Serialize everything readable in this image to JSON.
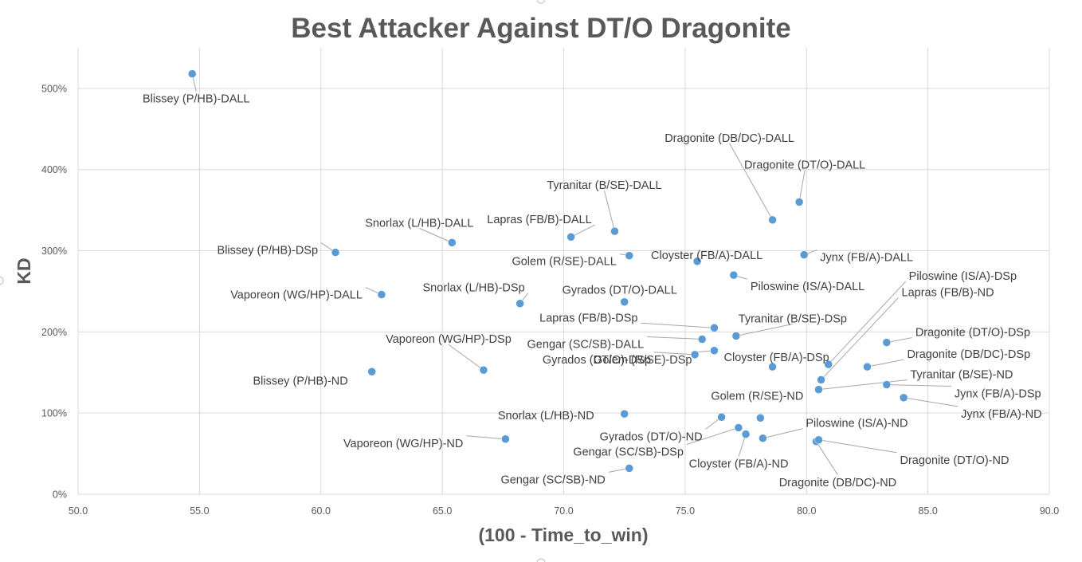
{
  "chart_data": {
    "type": "scatter",
    "title": "Best Attacker Against DT/O Dragonite",
    "xlabel": "(100 - Time_to_win)",
    "ylabel": "KD",
    "xlim": [
      50,
      90
    ],
    "ylim": [
      0,
      5.5
    ],
    "x_ticks": [
      "50.0",
      "55.0",
      "60.0",
      "65.0",
      "70.0",
      "75.0",
      "80.0",
      "85.0",
      "90.0"
    ],
    "y_ticks": [
      "0%",
      "100%",
      "200%",
      "300%",
      "400%",
      "500%"
    ],
    "grid": true,
    "legend": "none",
    "point_color": "#5b9bd5",
    "points": [
      {
        "label": "Blissey (P/HB)-DALL",
        "x": 54.7,
        "y": 5.18
      },
      {
        "label": "Blissey (P/HB)-DSp",
        "x": 60.6,
        "y": 2.98
      },
      {
        "label": "Blissey (P/HB)-ND",
        "x": 62.1,
        "y": 1.51
      },
      {
        "label": "Vaporeon (WG/HP)-DALL",
        "x": 62.5,
        "y": 2.46
      },
      {
        "label": "Vaporeon (WG/HP)-DSp",
        "x": 66.7,
        "y": 1.53
      },
      {
        "label": "Vaporeon (WG/HP)-ND",
        "x": 67.6,
        "y": 0.68
      },
      {
        "label": "Snorlax (L/HB)-DALL",
        "x": 65.4,
        "y": 3.1
      },
      {
        "label": "Snorlax (L/HB)-DSp",
        "x": 68.2,
        "y": 2.35
      },
      {
        "label": "Snorlax (L/HB)-ND",
        "x": 72.5,
        "y": 0.99
      },
      {
        "label": "Lapras (FB/B)-DALL",
        "x": 70.3,
        "y": 3.17
      },
      {
        "label": "Lapras (FB/B)-DSp",
        "x": 76.2,
        "y": 2.05
      },
      {
        "label": "Lapras (FB/B)-ND",
        "x": 80.6,
        "y": 1.41
      },
      {
        "label": "Tyranitar (B/SE)-DALL",
        "x": 72.1,
        "y": 3.24
      },
      {
        "label": "Tyranitar (B/SE)-DSp",
        "x": 77.1,
        "y": 1.95
      },
      {
        "label": "Tyranitar (B/SE)-ND",
        "x": 80.5,
        "y": 1.29
      },
      {
        "label": "Golem (R/SE)-DALL",
        "x": 72.7,
        "y": 2.94
      },
      {
        "label": "Golem (R/SE)-DSp",
        "x": 76.2,
        "y": 1.77
      },
      {
        "label": "Golem (R/SE)-ND",
        "x": 78.1,
        "y": 0.94
      },
      {
        "label": "Gyrados (DT/O)-DALL",
        "x": 72.5,
        "y": 2.37
      },
      {
        "label": "Gyrados (DT/O)-DSp",
        "x": 75.4,
        "y": 1.72
      },
      {
        "label": "Gyrados (DT/O)-ND",
        "x": 76.5,
        "y": 0.95
      },
      {
        "label": "Gengar (SC/SB)-DALL",
        "x": 75.7,
        "y": 1.91
      },
      {
        "label": "Gengar (SC/SB)-DSp",
        "x": 77.2,
        "y": 0.82
      },
      {
        "label": "Gengar (SC/SB)-ND",
        "x": 72.7,
        "y": 0.32
      },
      {
        "label": "Cloyster (FB/A)-DALL",
        "x": 75.5,
        "y": 2.87
      },
      {
        "label": "Cloyster (FB/A)-DSp",
        "x": 78.6,
        "y": 1.57
      },
      {
        "label": "Cloyster (FB/A)-ND",
        "x": 77.5,
        "y": 0.74
      },
      {
        "label": "Dragonite (DB/DC)-DALL",
        "x": 78.6,
        "y": 3.38
      },
      {
        "label": "Dragonite (DB/DC)-DSp",
        "x": 82.5,
        "y": 1.57
      },
      {
        "label": "Dragonite (DB/DC)-ND",
        "x": 80.4,
        "y": 0.65
      },
      {
        "label": "Dragonite (DT/O)-DALL",
        "x": 79.7,
        "y": 3.6
      },
      {
        "label": "Dragonite (DT/O)-DSp",
        "x": 83.3,
        "y": 1.87
      },
      {
        "label": "Dragonite (DT/O)-ND",
        "x": 80.5,
        "y": 0.67
      },
      {
        "label": "Piloswine (IS/A)-DALL",
        "x": 77.0,
        "y": 2.7
      },
      {
        "label": "Piloswine (IS/A)-DSp",
        "x": 80.9,
        "y": 1.6
      },
      {
        "label": "Piloswine (IS/A)-ND",
        "x": 78.2,
        "y": 0.69
      },
      {
        "label": "Jynx (FB/A)-DALL",
        "x": 79.9,
        "y": 2.95
      },
      {
        "label": "Jynx (FB/A)-DSp",
        "x": 83.3,
        "y": 1.35
      },
      {
        "label": "Jynx (FB/A)-ND",
        "x": 84.0,
        "y": 1.19
      }
    ]
  }
}
